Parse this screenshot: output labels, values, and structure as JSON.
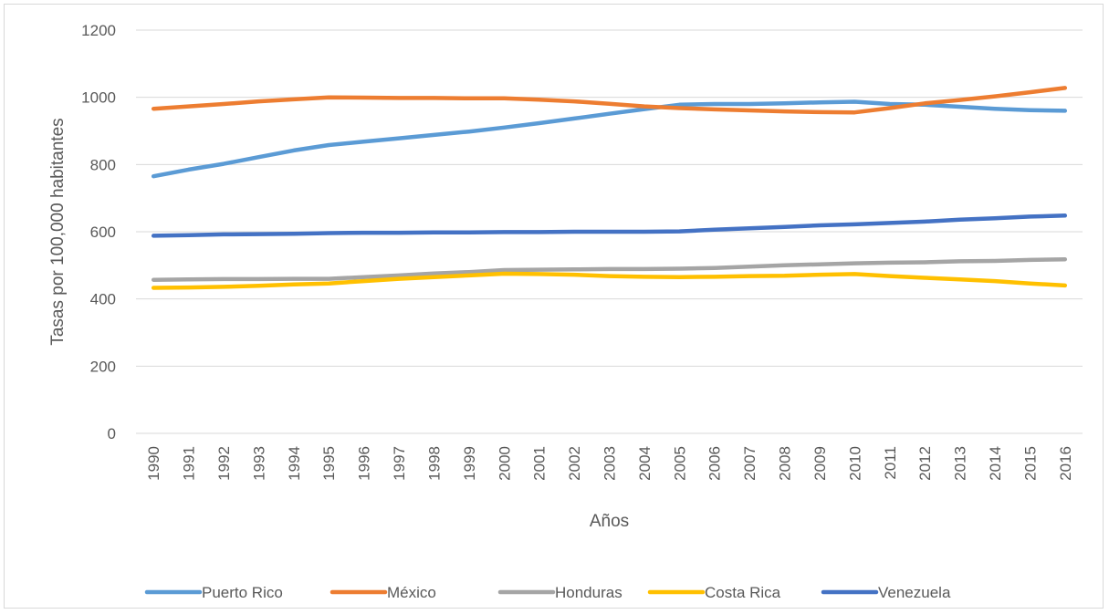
{
  "chart_data": {
    "type": "line",
    "title": "",
    "xlabel": "Años",
    "ylabel": "Tasas por 100,000 habitantes",
    "ylim": [
      0,
      1200
    ],
    "yticks": [
      0,
      200,
      400,
      600,
      800,
      1000,
      1200
    ],
    "grid": "horizontal",
    "legend_position": "bottom",
    "categories": [
      "1990",
      "1991",
      "1992",
      "1993",
      "1994",
      "1995",
      "1996",
      "1997",
      "1998",
      "1999",
      "2000",
      "2001",
      "2002",
      "2003",
      "2004",
      "2005",
      "2006",
      "2007",
      "2008",
      "2009",
      "2010",
      "2011",
      "2012",
      "2013",
      "2014",
      "2015",
      "2016"
    ],
    "series": [
      {
        "name": "Puerto Rico",
        "color": "#5B9BD5",
        "values": [
          765,
          785,
          802,
          822,
          842,
          858,
          868,
          878,
          888,
          898,
          910,
          923,
          937,
          951,
          965,
          978,
          980,
          980,
          982,
          985,
          987,
          980,
          978,
          972,
          966,
          962,
          960
        ]
      },
      {
        "name": "México",
        "color": "#ED7D31",
        "values": [
          966,
          973,
          980,
          988,
          994,
          1000,
          999,
          998,
          998,
          997,
          997,
          993,
          988,
          981,
          973,
          968,
          964,
          961,
          958,
          956,
          955,
          968,
          982,
          992,
          1003,
          1015,
          1028
        ]
      },
      {
        "name": "Honduras",
        "color": "#A5A5A5",
        "values": [
          457,
          458,
          459,
          459,
          460,
          460,
          465,
          470,
          476,
          480,
          486,
          487,
          488,
          489,
          489,
          490,
          492,
          496,
          500,
          503,
          506,
          508,
          509,
          512,
          513,
          516,
          518
        ]
      },
      {
        "name": "Costa Rica",
        "color": "#FFC000",
        "values": [
          433,
          434,
          436,
          439,
          443,
          446,
          453,
          460,
          465,
          470,
          475,
          474,
          472,
          468,
          466,
          465,
          466,
          468,
          469,
          472,
          474,
          468,
          463,
          458,
          453,
          446,
          440
        ]
      },
      {
        "name": "Venezuela",
        "color": "#4472C4",
        "values": [
          588,
          590,
          592,
          593,
          594,
          596,
          597,
          597,
          598,
          598,
          599,
          599,
          600,
          600,
          600,
          601,
          606,
          610,
          614,
          619,
          622,
          626,
          630,
          636,
          640,
          645,
          648
        ]
      }
    ]
  }
}
